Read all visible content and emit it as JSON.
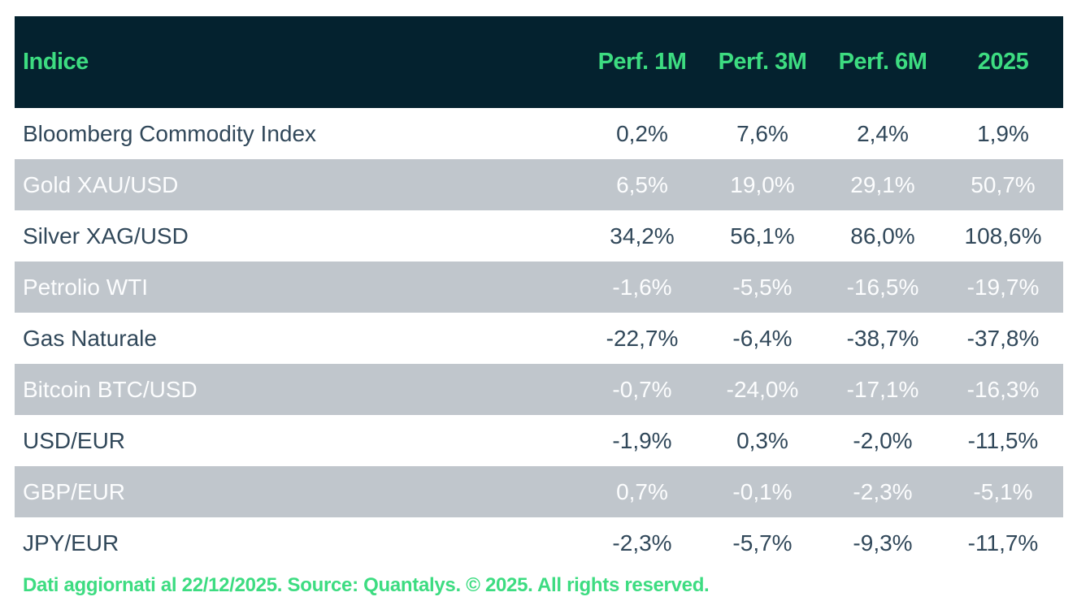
{
  "chart_data": {
    "type": "table",
    "columns": [
      "Indice",
      "Perf. 1M",
      "Perf. 3M",
      "Perf. 6M",
      "2025"
    ],
    "rows": [
      {
        "label": "Bloomberg Commodity Index",
        "values": [
          "0,2%",
          "7,6%",
          "2,4%",
          "1,9%"
        ]
      },
      {
        "label": "Gold XAU/USD",
        "values": [
          "6,5%",
          "19,0%",
          "29,1%",
          "50,7%"
        ]
      },
      {
        "label": "Silver XAG/USD",
        "values": [
          "34,2%",
          "56,1%",
          "86,0%",
          "108,6%"
        ]
      },
      {
        "label": "Petrolio WTI",
        "values": [
          "-1,6%",
          "-5,5%",
          "-16,5%",
          "-19,7%"
        ]
      },
      {
        "label": "Gas Naturale",
        "values": [
          "-22,7%",
          "-6,4%",
          "-38,7%",
          "-37,8%"
        ]
      },
      {
        "label": "Bitcoin BTC/USD",
        "values": [
          "-0,7%",
          "-24,0%",
          "-17,1%",
          "-16,3%"
        ]
      },
      {
        "label": "USD/EUR",
        "values": [
          "-1,9%",
          "0,3%",
          "-2,0%",
          "-11,5%"
        ]
      },
      {
        "label": "GBP/EUR",
        "values": [
          "0,7%",
          "-0,1%",
          "-2,3%",
          "-5,1%"
        ]
      },
      {
        "label": "JPY/EUR",
        "values": [
          "-2,3%",
          "-5,7%",
          "-9,3%",
          "-11,7%"
        ]
      }
    ]
  },
  "footer": {
    "note": "Dati aggiornati al 22/12/2025. Source: Quantalys. © 2025. All rights reserved."
  },
  "colors": {
    "header_bg": "#04222f",
    "accent_green": "#3ddc81",
    "row_alt_bg": "#c0c6cc",
    "row_text": "#31485a",
    "row_alt_text": "#fcfdfe",
    "page_bg": "#ffffff"
  }
}
